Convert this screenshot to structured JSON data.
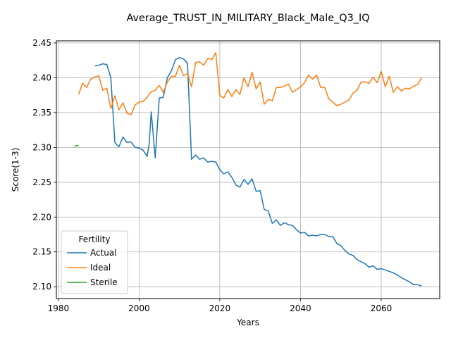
{
  "chart_data": {
    "type": "line",
    "title": "Average_TRUST_IN_MILITARY_Black_Male_Q3_IQ",
    "xlabel": "Years",
    "ylabel": "Score(1-3)",
    "xlim": [
      1979.5,
      2074.5
    ],
    "ylim": [
      2.083,
      2.453
    ],
    "xticks": [
      1980,
      2000,
      2020,
      2040,
      2060
    ],
    "yticks": [
      2.1,
      2.15,
      2.2,
      2.25,
      2.3,
      2.35,
      2.4,
      2.45
    ],
    "xtick_labels": [
      "1980",
      "2000",
      "2020",
      "2040",
      "2060"
    ],
    "ytick_labels": [
      "2.10",
      "2.15",
      "2.20",
      "2.25",
      "2.30",
      "2.35",
      "2.40",
      "2.45"
    ],
    "grid": true,
    "legend": {
      "title": "Fertility",
      "position": "lower-left"
    },
    "series": [
      {
        "name": "Actual",
        "color": "#1f77b4",
        "x": [
          1989,
          1990,
          1991,
          1992,
          1993,
          1994,
          1995,
          1996,
          1997,
          1998,
          1999,
          2000,
          2001,
          2002,
          2002.5,
          2003,
          2004,
          2005,
          2006,
          2007,
          2008,
          2009,
          2010,
          2011,
          2012,
          2013,
          2014,
          2015,
          2016,
          2017,
          2018,
          2019,
          2020,
          2021,
          2022,
          2023,
          2024,
          2025,
          2026,
          2027,
          2028,
          2029,
          2030,
          2031,
          2032,
          2033,
          2034,
          2035,
          2036,
          2037,
          2038,
          2039,
          2040,
          2041,
          2042,
          2043,
          2044,
          2045,
          2046,
          2047,
          2048,
          2049,
          2050,
          2051,
          2052,
          2053,
          2054,
          2055,
          2056,
          2057,
          2058,
          2059,
          2060,
          2061,
          2062,
          2063,
          2064,
          2065,
          2066,
          2067,
          2068,
          2069,
          2070
        ],
        "y": [
          2.417,
          2.418,
          2.42,
          2.419,
          2.4,
          2.307,
          2.301,
          2.315,
          2.307,
          2.308,
          2.3,
          2.299,
          2.296,
          2.287,
          2.305,
          2.351,
          2.285,
          2.371,
          2.372,
          2.4,
          2.41,
          2.426,
          2.429,
          2.427,
          2.421,
          2.283,
          2.289,
          2.283,
          2.285,
          2.279,
          2.28,
          2.279,
          2.268,
          2.262,
          2.265,
          2.257,
          2.246,
          2.243,
          2.254,
          2.247,
          2.255,
          2.237,
          2.238,
          2.211,
          2.209,
          2.191,
          2.196,
          2.188,
          2.192,
          2.189,
          2.188,
          2.182,
          2.177,
          2.178,
          2.173,
          2.174,
          2.173,
          2.175,
          2.175,
          2.172,
          2.172,
          2.162,
          2.159,
          2.152,
          2.147,
          2.145,
          2.139,
          2.136,
          2.133,
          2.128,
          2.13,
          2.125,
          2.126,
          2.124,
          2.122,
          2.12,
          2.117,
          2.113,
          2.11,
          2.107,
          2.103,
          2.103,
          2.101
        ]
      },
      {
        "name": "Ideal",
        "color": "#ff7f0e",
        "x": [
          1985,
          1986,
          1987,
          1988,
          1989,
          1990,
          1991,
          1992,
          1993,
          1994,
          1995,
          1996,
          1997,
          1998,
          1999,
          2000,
          2001,
          2002,
          2003,
          2004,
          2005,
          2006,
          2007,
          2008,
          2009,
          2010,
          2011,
          2012,
          2013,
          2014,
          2015,
          2016,
          2017,
          2018,
          2019,
          2020,
          2021,
          2022,
          2023,
          2024,
          2025,
          2026,
          2027,
          2028,
          2029,
          2030,
          2031,
          2032,
          2033,
          2034,
          2035,
          2036,
          2037,
          2038,
          2039,
          2040,
          2041,
          2042,
          2043,
          2044,
          2045,
          2046,
          2047,
          2048,
          2049,
          2050,
          2051,
          2052,
          2053,
          2054,
          2055,
          2056,
          2057,
          2058,
          2059,
          2060,
          2061,
          2062,
          2063,
          2064,
          2065,
          2066,
          2067,
          2068,
          2069,
          2070
        ],
        "y": [
          2.376,
          2.392,
          2.386,
          2.398,
          2.401,
          2.403,
          2.382,
          2.385,
          2.356,
          2.374,
          2.354,
          2.364,
          2.349,
          2.347,
          2.361,
          2.365,
          2.366,
          2.372,
          2.38,
          2.382,
          2.389,
          2.379,
          2.394,
          2.402,
          2.402,
          2.418,
          2.403,
          2.406,
          2.387,
          2.422,
          2.423,
          2.418,
          2.428,
          2.426,
          2.436,
          2.375,
          2.371,
          2.383,
          2.373,
          2.383,
          2.376,
          2.4,
          2.387,
          2.408,
          2.384,
          2.394,
          2.362,
          2.369,
          2.367,
          2.386,
          2.386,
          2.388,
          2.391,
          2.379,
          2.383,
          2.387,
          2.393,
          2.404,
          2.398,
          2.404,
          2.386,
          2.386,
          2.37,
          2.365,
          2.36,
          2.362,
          2.365,
          2.368,
          2.378,
          2.382,
          2.394,
          2.394,
          2.392,
          2.401,
          2.393,
          2.409,
          2.387,
          2.402,
          2.379,
          2.387,
          2.381,
          2.385,
          2.384,
          2.388,
          2.39,
          2.4
        ]
      },
      {
        "name": "Sterile",
        "color": "#2ca02c",
        "x": [
          1984,
          1985
        ],
        "y": [
          2.302,
          2.303
        ]
      }
    ]
  }
}
